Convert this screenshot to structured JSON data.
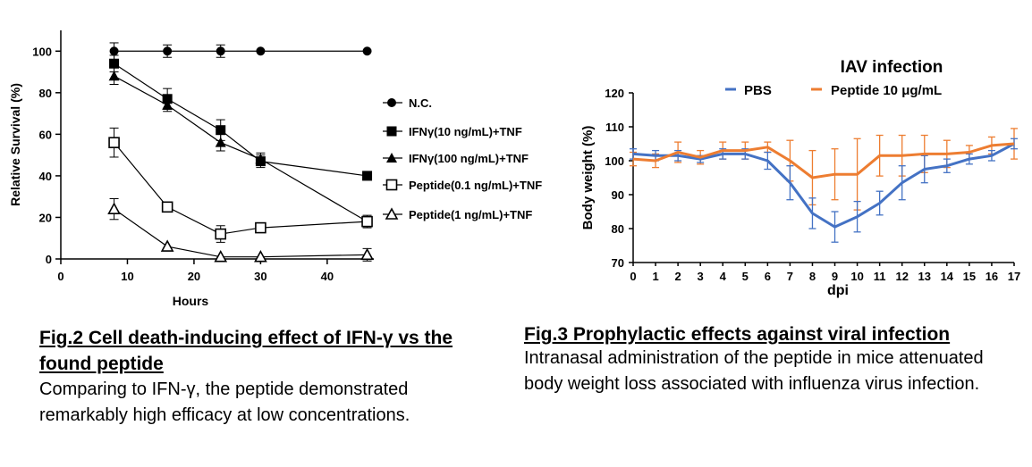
{
  "chart_data": [
    {
      "type": "line",
      "xlabel": "Hours",
      "ylabel": "Relative Survival (%)",
      "xlim": [
        0,
        47
      ],
      "ylim": [
        0,
        110
      ],
      "xticks": [
        0,
        10,
        20,
        30,
        40
      ],
      "yticks": [
        0,
        20,
        40,
        60,
        80,
        100
      ],
      "x": [
        8,
        16,
        24,
        30,
        46
      ],
      "series": [
        {
          "name": "N.C.",
          "marker": "circle-filled",
          "values": [
            100,
            100,
            100,
            100,
            100
          ],
          "err": [
            4,
            3,
            3,
            0,
            0
          ]
        },
        {
          "name": "IFNγ(10 ng/mL)+TNF",
          "marker": "square-filled",
          "values": [
            94,
            77,
            62,
            47,
            40
          ],
          "err": [
            4,
            5,
            5,
            3,
            0
          ]
        },
        {
          "name": "IFNγ(100 ng/mL)+TNF",
          "marker": "triangle-filled",
          "values": [
            88,
            74,
            56,
            48,
            18
          ],
          "err": [
            4,
            3,
            4,
            3,
            3
          ]
        },
        {
          "name": "Peptide(0.1 ng/mL)+TNF",
          "marker": "square-open",
          "values": [
            56,
            25,
            12,
            15,
            18
          ],
          "err": [
            7,
            2,
            4,
            0,
            2
          ]
        },
        {
          "name": "Peptide(1 ng/mL)+TNF",
          "marker": "triangle-open",
          "values": [
            24,
            6,
            1,
            1,
            2
          ],
          "err": [
            5,
            0,
            0,
            0,
            3
          ]
        }
      ]
    },
    {
      "type": "line",
      "title": "IAV infection",
      "xlabel": "dpi",
      "ylabel": "Body weight (%)",
      "xlim": [
        0,
        17
      ],
      "ylim": [
        70,
        120
      ],
      "xticks": [
        0,
        1,
        2,
        3,
        4,
        5,
        6,
        7,
        8,
        9,
        10,
        11,
        12,
        13,
        14,
        15,
        16,
        17
      ],
      "yticks": [
        70,
        80,
        90,
        100,
        110,
        120
      ],
      "x": [
        0,
        1,
        2,
        3,
        4,
        5,
        6,
        7,
        8,
        9,
        10,
        11,
        12,
        13,
        14,
        15,
        16,
        17
      ],
      "series": [
        {
          "name": "PBS",
          "color": "#4472c4",
          "values": [
            102,
            101.5,
            101.5,
            100.5,
            102,
            102,
            100,
            93.5,
            84.5,
            80.5,
            83.5,
            87.5,
            93.5,
            97.5,
            98.5,
            100.5,
            101.5,
            105
          ],
          "err": [
            1.5,
            1.5,
            1.5,
            1,
            1.5,
            1.5,
            2.5,
            5,
            4.5,
            4.5,
            4.5,
            3.5,
            5,
            4,
            2,
            1.5,
            1.5,
            1.5
          ]
        },
        {
          "name": "Peptide 10 μg/mL",
          "color": "#ed7d31",
          "values": [
            100.5,
            100,
            102.5,
            101,
            103,
            103,
            104,
            100,
            95,
            96,
            96,
            101.5,
            101.5,
            102,
            102,
            102.5,
            104.5,
            105
          ],
          "err": [
            2,
            2,
            3,
            2,
            2.5,
            2.5,
            1.5,
            6,
            8,
            7.5,
            10.5,
            6,
            6,
            5.5,
            4,
            2,
            2.5,
            4.5
          ]
        }
      ]
    }
  ],
  "captions": {
    "fig2": {
      "title": "Fig.2 Cell death-inducing effect of IFN-γ vs the found peptide",
      "body": "Comparing to IFN-γ, the peptide demonstrated remarkably high efficacy at low concentrations."
    },
    "fig3": {
      "title": "Fig.3 Prophylactic effects against viral infection",
      "body": "Intranasal administration of the peptide in mice attenuated body weight loss associated with influenza virus infection."
    }
  }
}
